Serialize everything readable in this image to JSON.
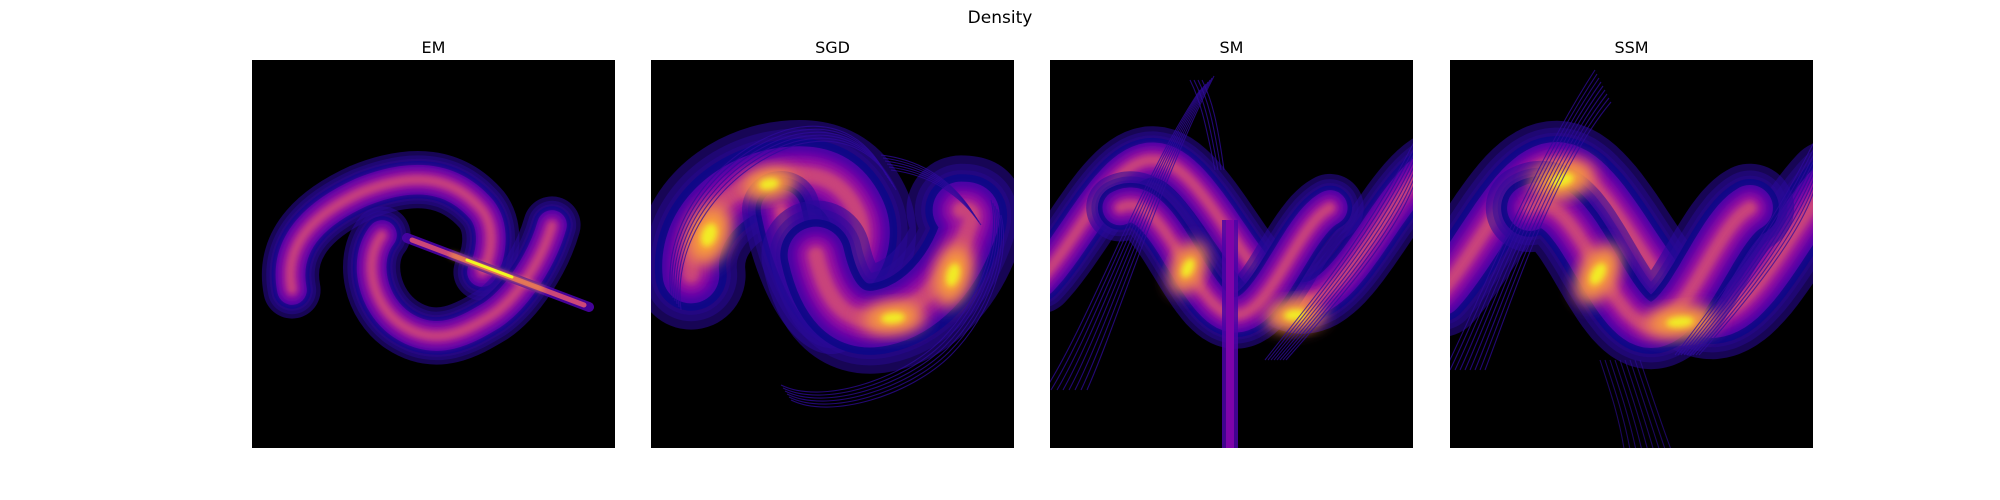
{
  "figure": {
    "title": "Density"
  },
  "chart_data": [
    {
      "type": "heatmap",
      "title": "EM",
      "xlabel": "",
      "ylabel": "",
      "grid": false,
      "colormap": "plasma",
      "background": "#000000"
    },
    {
      "type": "heatmap",
      "title": "SGD",
      "xlabel": "",
      "ylabel": "",
      "grid": false,
      "colormap": "plasma",
      "background": "#000000"
    },
    {
      "type": "heatmap",
      "title": "SM",
      "xlabel": "",
      "ylabel": "",
      "grid": false,
      "colormap": "plasma",
      "background": "#000000"
    },
    {
      "type": "heatmap",
      "title": "SSM",
      "xlabel": "",
      "ylabel": "",
      "grid": false,
      "colormap": "plasma",
      "background": "#000000"
    }
  ]
}
